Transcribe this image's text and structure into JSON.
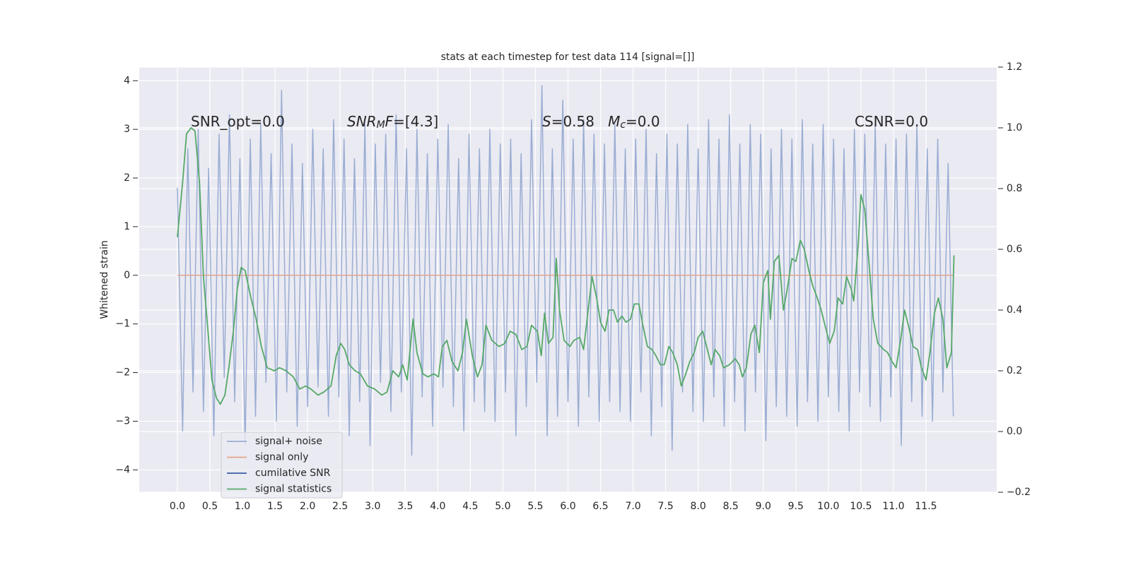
{
  "chart_data": {
    "type": "line",
    "title": "stats at each timestep for test data 114 [signal=[]]",
    "y_label": "Whitened strain",
    "xlim": [
      -0.586,
      12.586
    ],
    "ylim": [
      -4.46,
      4.28
    ],
    "y2lim": [
      -0.2,
      1.2
    ],
    "xticks": [
      {
        "value": 0,
        "label": "0.0"
      },
      {
        "value": 0.5,
        "label": "0.5"
      },
      {
        "value": 1,
        "label": "1.0"
      },
      {
        "value": 1.5,
        "label": "1.5"
      },
      {
        "value": 2,
        "label": "2.0"
      },
      {
        "value": 2.5,
        "label": "2.5"
      },
      {
        "value": 3,
        "label": "3.0"
      },
      {
        "value": 3.5,
        "label": "3.5"
      },
      {
        "value": 4,
        "label": "4.0"
      },
      {
        "value": 4.5,
        "label": "4.5"
      },
      {
        "value": 5,
        "label": "5.0"
      },
      {
        "value": 5.5,
        "label": "5.5"
      },
      {
        "value": 6,
        "label": "6.0"
      },
      {
        "value": 6.5,
        "label": "6.5"
      },
      {
        "value": 7,
        "label": "7.0"
      },
      {
        "value": 7.5,
        "label": "7.5"
      },
      {
        "value": 8,
        "label": "8.0"
      },
      {
        "value": 8.5,
        "label": "8.5"
      },
      {
        "value": 9,
        "label": "9.0"
      },
      {
        "value": 9.5,
        "label": "9.5"
      },
      {
        "value": 10,
        "label": "10.0"
      },
      {
        "value": 10.5,
        "label": "10.5"
      },
      {
        "value": 11,
        "label": "11.0"
      },
      {
        "value": 11.5,
        "label": "11.5"
      }
    ],
    "yticks": [
      {
        "value": -4,
        "label": "−4"
      },
      {
        "value": -3,
        "label": "−3"
      },
      {
        "value": -2,
        "label": "−2"
      },
      {
        "value": -1,
        "label": "−1"
      },
      0,
      1,
      2,
      3,
      4
    ],
    "y2ticks": [
      {
        "value": -0.2,
        "label": "−0.2"
      },
      {
        "value": 0,
        "label": "0.0"
      },
      {
        "value": 0.2,
        "label": "0.2"
      },
      {
        "value": 0.4,
        "label": "0.4"
      },
      {
        "value": 0.6,
        "label": "0.6"
      },
      {
        "value": 0.8,
        "label": "0.8"
      },
      {
        "value": 1,
        "label": "1.0"
      },
      {
        "value": 1.2,
        "label": "1.2"
      }
    ],
    "grid": true,
    "legend": "lower left",
    "annotations": [
      {
        "parts": [
          {
            "text": "SNR_opt=0.0",
            "style": "normal"
          }
        ]
      },
      {
        "parts": [
          {
            "text": "SNR",
            "style": "italic"
          },
          {
            "text": "M",
            "style": "italic-sub"
          },
          {
            "text": "F",
            "style": "italic"
          },
          {
            "text": "=[4.3]",
            "style": "normal"
          }
        ]
      },
      {
        "parts": [
          {
            "text": "S",
            "style": "italic"
          },
          {
            "text": "=0.58   ",
            "style": "normal"
          },
          {
            "text": "M",
            "style": "italic"
          },
          {
            "text": "c",
            "style": "italic-sub"
          },
          {
            "text": "=0.0",
            "style": "normal"
          }
        ]
      },
      {
        "parts": [
          {
            "text": "CSNR=0.0",
            "style": "normal"
          }
        ]
      }
    ],
    "series": [
      {
        "name": "signal+ noise",
        "color": "#9aadd3",
        "x": [
          0,
          0.08,
          0.16,
          0.24,
          0.32,
          0.4,
          0.48,
          0.56,
          0.64,
          0.72,
          0.8,
          0.88,
          0.96,
          1.04,
          1.12,
          1.2,
          1.28,
          1.36,
          1.44,
          1.52,
          1.6,
          1.68,
          1.76,
          1.84,
          1.92,
          2.0,
          2.08,
          2.16,
          2.24,
          2.32,
          2.4,
          2.48,
          2.56,
          2.64,
          2.72,
          2.8,
          2.88,
          2.96,
          3.04,
          3.12,
          3.2,
          3.28,
          3.36,
          3.44,
          3.52,
          3.6,
          3.68,
          3.76,
          3.84,
          3.92,
          4.0,
          4.08,
          4.16,
          4.24,
          4.32,
          4.4,
          4.48,
          4.56,
          4.64,
          4.72,
          4.8,
          4.88,
          4.96,
          5.04,
          5.12,
          5.2,
          5.28,
          5.36,
          5.44,
          5.52,
          5.6,
          5.68,
          5.76,
          5.84,
          5.92,
          6.0,
          6.08,
          6.16,
          6.24,
          6.32,
          6.4,
          6.48,
          6.56,
          6.64,
          6.72,
          6.8,
          6.88,
          6.96,
          7.04,
          7.12,
          7.2,
          7.28,
          7.36,
          7.44,
          7.52,
          7.6,
          7.68,
          7.76,
          7.84,
          7.92,
          8.0,
          8.08,
          8.16,
          8.24,
          8.32,
          8.4,
          8.48,
          8.56,
          8.64,
          8.72,
          8.8,
          8.88,
          8.96,
          9.04,
          9.12,
          9.2,
          9.28,
          9.36,
          9.44,
          9.52,
          9.6,
          9.68,
          9.76,
          9.84,
          9.92,
          10.0,
          10.08,
          10.16,
          10.24,
          10.32,
          10.4,
          10.48,
          10.56,
          10.64,
          10.72,
          10.8,
          10.88,
          10.96,
          11.04,
          11.12,
          11.2,
          11.28,
          11.36,
          11.44,
          11.52,
          11.6,
          11.68,
          11.76,
          11.84,
          11.92
        ],
        "values": [
          1.8,
          -3.2,
          2.6,
          -2.4,
          3.0,
          -2.8,
          2.2,
          -3.3,
          2.9,
          -2.1,
          3.3,
          -2.6,
          2.4,
          -3.5,
          2.8,
          -2.9,
          3.1,
          -2.2,
          2.5,
          -3.0,
          3.8,
          -2.4,
          2.7,
          -3.1,
          2.3,
          -2.7,
          3.0,
          -2.3,
          2.6,
          -2.9,
          3.2,
          -2.5,
          2.8,
          -3.3,
          2.4,
          -2.6,
          3.1,
          -3.5,
          2.7,
          -2.2,
          2.9,
          -2.8,
          3.3,
          -2.4,
          2.6,
          -3.7,
          3.0,
          -2.5,
          2.5,
          -3.1,
          2.8,
          -2.3,
          3.1,
          -2.7,
          2.4,
          -3.2,
          2.9,
          -2.6,
          2.6,
          -2.8,
          3.0,
          -3.0,
          2.7,
          -2.4,
          2.8,
          -3.3,
          2.5,
          -2.7,
          3.2,
          -2.2,
          3.9,
          -3.3,
          2.6,
          -2.9,
          3.6,
          -2.6,
          2.8,
          -3.1,
          3.2,
          -2.5,
          2.9,
          -3.0,
          2.7,
          -2.6,
          3.1,
          -2.8,
          2.6,
          -3.0,
          2.8,
          -2.4,
          3.0,
          -3.3,
          2.5,
          -2.7,
          2.9,
          -3.6,
          2.7,
          -2.4,
          3.1,
          -2.8,
          2.6,
          -3.0,
          3.2,
          -2.5,
          2.8,
          -3.1,
          3.3,
          -2.6,
          2.7,
          -3.2,
          3.1,
          -2.4,
          2.9,
          -3.4,
          2.6,
          -2.7,
          3.0,
          -2.9,
          2.8,
          -3.1,
          3.2,
          -2.6,
          2.7,
          -3.0,
          3.1,
          -2.5,
          2.8,
          -2.8,
          2.6,
          -3.2,
          3.0,
          -2.4,
          2.9,
          -2.7,
          3.1,
          -3.0,
          2.7,
          -2.5,
          2.8,
          -3.5,
          2.9,
          -2.6,
          3.1,
          -2.9,
          2.6,
          -3.0,
          2.8,
          -2.4,
          2.3,
          -2.9
        ]
      },
      {
        "name": "signal only",
        "color": "#e3a58a",
        "x": [
          0,
          11.92
        ],
        "values": [
          0,
          0
        ]
      },
      {
        "name": "cumilative SNR",
        "color": "#3b5ea6",
        "x": [],
        "values": []
      },
      {
        "name": "signal statistics",
        "color": "#55a868",
        "axis": "y2",
        "x": [
          0,
          0.08,
          0.14,
          0.21,
          0.27,
          0.34,
          0.4,
          0.47,
          0.53,
          0.6,
          0.66,
          0.73,
          0.79,
          0.86,
          0.92,
          0.98,
          1.04,
          1.13,
          1.21,
          1.29,
          1.38,
          1.49,
          1.57,
          1.67,
          1.78,
          1.88,
          1.97,
          2.05,
          2.16,
          2.25,
          2.36,
          2.44,
          2.51,
          2.57,
          2.64,
          2.73,
          2.81,
          2.92,
          3.03,
          3.14,
          3.22,
          3.31,
          3.4,
          3.46,
          3.53,
          3.62,
          3.68,
          3.77,
          3.85,
          3.94,
          4.01,
          4.07,
          4.14,
          4.22,
          4.31,
          4.38,
          4.44,
          4.53,
          4.61,
          4.68,
          4.74,
          4.83,
          4.94,
          5.03,
          5.11,
          5.2,
          5.29,
          5.37,
          5.44,
          5.53,
          5.59,
          5.64,
          5.7,
          5.77,
          5.82,
          5.87,
          5.94,
          6.03,
          6.09,
          6.18,
          6.24,
          6.31,
          6.37,
          6.44,
          6.5,
          6.57,
          6.63,
          6.7,
          6.76,
          6.83,
          6.89,
          6.96,
          7.02,
          7.09,
          7.15,
          7.22,
          7.29,
          7.35,
          7.42,
          7.48,
          7.55,
          7.61,
          7.68,
          7.74,
          7.81,
          7.87,
          7.94,
          8.0,
          8.07,
          8.13,
          8.2,
          8.26,
          8.33,
          8.39,
          8.48,
          8.57,
          8.63,
          8.68,
          8.74,
          8.81,
          8.87,
          8.94,
          9.0,
          9.07,
          9.11,
          9.17,
          9.24,
          9.31,
          9.37,
          9.44,
          9.5,
          9.57,
          9.63,
          9.7,
          9.76,
          9.83,
          9.89,
          9.96,
          10.02,
          10.09,
          10.15,
          10.22,
          10.28,
          10.35,
          10.39,
          10.46,
          10.5,
          10.56,
          10.63,
          10.69,
          10.76,
          10.85,
          10.91,
          10.98,
          11.04,
          11.11,
          11.17,
          11.24,
          11.3,
          11.37,
          11.43,
          11.5,
          11.56,
          11.63,
          11.69,
          11.76,
          11.82,
          11.89,
          11.93
        ],
        "values": [
          0.64,
          0.82,
          0.98,
          1.0,
          0.99,
          0.82,
          0.51,
          0.33,
          0.17,
          0.11,
          0.09,
          0.12,
          0.21,
          0.33,
          0.47,
          0.54,
          0.53,
          0.44,
          0.37,
          0.28,
          0.21,
          0.2,
          0.21,
          0.2,
          0.18,
          0.14,
          0.15,
          0.14,
          0.12,
          0.13,
          0.15,
          0.25,
          0.29,
          0.27,
          0.22,
          0.2,
          0.19,
          0.15,
          0.14,
          0.12,
          0.13,
          0.2,
          0.18,
          0.22,
          0.17,
          0.37,
          0.26,
          0.19,
          0.18,
          0.19,
          0.18,
          0.28,
          0.3,
          0.23,
          0.2,
          0.26,
          0.37,
          0.25,
          0.18,
          0.22,
          0.35,
          0.3,
          0.28,
          0.29,
          0.33,
          0.32,
          0.27,
          0.28,
          0.35,
          0.33,
          0.25,
          0.39,
          0.29,
          0.31,
          0.57,
          0.4,
          0.3,
          0.28,
          0.3,
          0.31,
          0.27,
          0.4,
          0.51,
          0.44,
          0.36,
          0.33,
          0.4,
          0.4,
          0.36,
          0.38,
          0.36,
          0.37,
          0.42,
          0.42,
          0.35,
          0.28,
          0.27,
          0.25,
          0.22,
          0.22,
          0.28,
          0.26,
          0.22,
          0.15,
          0.19,
          0.23,
          0.26,
          0.31,
          0.33,
          0.28,
          0.22,
          0.27,
          0.25,
          0.21,
          0.22,
          0.24,
          0.22,
          0.18,
          0.21,
          0.32,
          0.35,
          0.26,
          0.49,
          0.53,
          0.37,
          0.56,
          0.58,
          0.4,
          0.47,
          0.57,
          0.56,
          0.63,
          0.6,
          0.53,
          0.48,
          0.44,
          0.4,
          0.34,
          0.29,
          0.33,
          0.44,
          0.42,
          0.51,
          0.47,
          0.43,
          0.62,
          0.78,
          0.73,
          0.54,
          0.37,
          0.29,
          0.27,
          0.26,
          0.23,
          0.21,
          0.3,
          0.4,
          0.34,
          0.28,
          0.27,
          0.21,
          0.17,
          0.26,
          0.39,
          0.44,
          0.37,
          0.21,
          0.26,
          0.58
        ]
      }
    ]
  }
}
